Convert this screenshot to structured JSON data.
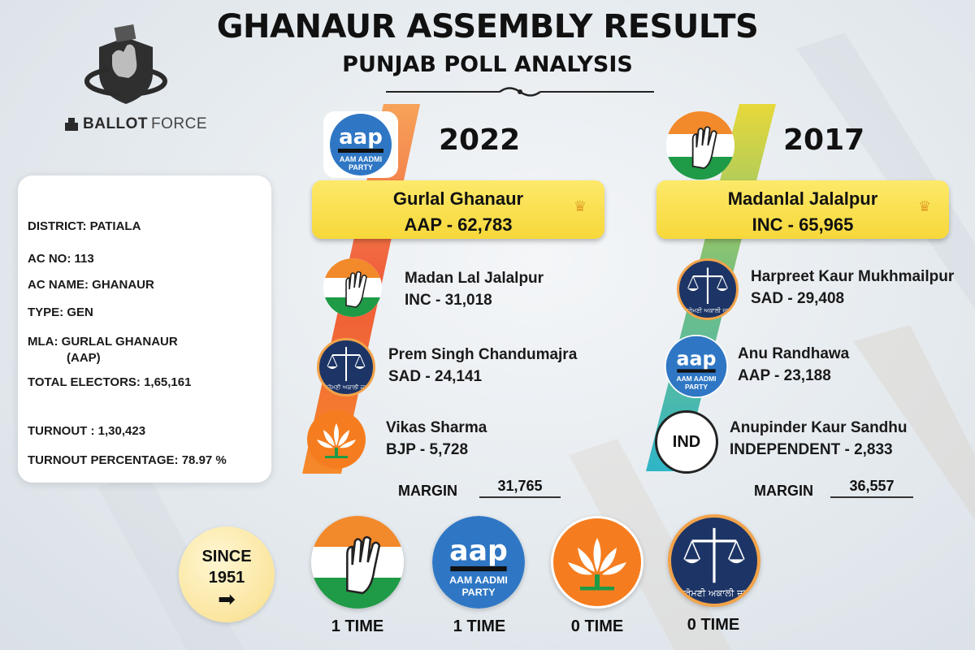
{
  "header": {
    "title": "GHANAUR ASSEMBLY RESULTS",
    "subtitle": "PUNJAB POLL ANALYSIS"
  },
  "brand": {
    "name_bold": "BALLOT",
    "name_light": "FORCE"
  },
  "info": {
    "district": "DISTRICT: PATIALA",
    "ac_no": "AC NO: 113",
    "ac_name": "AC NAME: GHANAUR",
    "type": "TYPE:  GEN",
    "mla": "MLA:  GURLAL GHANAUR",
    "mla_party": "(AAP)",
    "total_electors": "TOTAL ELECTORS:  1,65,161",
    "turnout": "TURNOUT : 1,30,423",
    "turnout_pct": "TURNOUT PERCENTAGE: 78.97  %"
  },
  "results_2022": {
    "year": "2022",
    "winner": {
      "name": "Gurlal Ghanaur",
      "votes": "AAP - 62,783"
    },
    "candidates": [
      {
        "name": "Madan Lal Jalalpur",
        "votes": "INC - 31,018"
      },
      {
        "name": "Prem Singh Chandumajra",
        "votes": "SAD - 24,141"
      },
      {
        "name": "Vikas Sharma",
        "votes": "BJP - 5,728"
      }
    ],
    "margin_label": "MARGIN",
    "margin": "31,765"
  },
  "results_2017": {
    "year": "2017",
    "winner": {
      "name": "Madanlal Jalalpur",
      "votes": "INC - 65,965"
    },
    "candidates": [
      {
        "name": "Harpreet Kaur Mukhmailpur",
        "votes": "SAD - 29,408"
      },
      {
        "name": "Anu Randhawa",
        "votes": "AAP - 23,188"
      },
      {
        "name": "Anupinder Kaur Sandhu",
        "votes": "INDEPENDENT - 2,833"
      }
    ],
    "margin_label": "MARGIN",
    "margin": "36,557"
  },
  "logo_text": {
    "aap": "aap",
    "aap_line1": "AAM AADMI",
    "aap_line2": "PARTY",
    "ind": "IND",
    "sad": "ਸ਼੍ਰੋਮਣੀ ਅਕਾਲੀ ਦਲ"
  },
  "since": {
    "line1": "SINCE",
    "line2": "1951",
    "tally": [
      {
        "party": "INC",
        "count": "1 TIME"
      },
      {
        "party": "AAP",
        "count": "1 TIME"
      },
      {
        "party": "BJP",
        "count": "0 TIME"
      },
      {
        "party": "SAD",
        "count": "0 TIME"
      }
    ]
  },
  "colors": {
    "saffron": "#f2892b",
    "green": "#1f9a46",
    "aap_blue": "#1f6fb5",
    "sad_navy": "#1d3566",
    "bjp_orange": "#f57d1f",
    "winner_yellow": "#f7d83a"
  }
}
